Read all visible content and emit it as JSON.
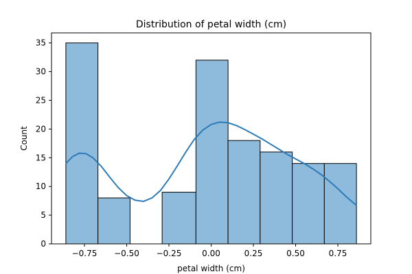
{
  "chart_data": {
    "type": "bar",
    "title": "Distribution of petal width (cm)",
    "xlabel": "petal width (cm)",
    "ylabel": "Count",
    "xlim": [
      -0.945,
      0.945
    ],
    "ylim": [
      0,
      36.75
    ],
    "xticks": [
      -0.75,
      -0.5,
      -0.25,
      0.0,
      0.25,
      0.5,
      0.75
    ],
    "xtick_labels": [
      "−0.75",
      "−0.50",
      "−0.25",
      "0.00",
      "0.25",
      "0.50",
      "0.75"
    ],
    "yticks": [
      0,
      5,
      10,
      15,
      20,
      25,
      30,
      35
    ],
    "ytick_labels": [
      "0",
      "5",
      "10",
      "15",
      "20",
      "25",
      "30",
      "35"
    ],
    "bins": [
      {
        "x0": -0.86,
        "x1": -0.67,
        "count": 35
      },
      {
        "x0": -0.67,
        "x1": -0.48,
        "count": 8
      },
      {
        "x0": -0.48,
        "x1": -0.29,
        "count": 0
      },
      {
        "x0": -0.29,
        "x1": -0.09,
        "count": 9
      },
      {
        "x0": -0.09,
        "x1": 0.1,
        "count": 32
      },
      {
        "x0": 0.1,
        "x1": 0.29,
        "count": 18
      },
      {
        "x0": 0.29,
        "x1": 0.48,
        "count": 16
      },
      {
        "x0": 0.48,
        "x1": 0.67,
        "count": 14
      },
      {
        "x0": 0.67,
        "x1": 0.86,
        "count": 14
      }
    ],
    "kde": {
      "x": [
        -0.86,
        -0.82,
        -0.78,
        -0.74,
        -0.7,
        -0.65,
        -0.6,
        -0.55,
        -0.5,
        -0.45,
        -0.4,
        -0.35,
        -0.3,
        -0.25,
        -0.2,
        -0.15,
        -0.1,
        -0.05,
        0.0,
        0.05,
        0.1,
        0.15,
        0.2,
        0.25,
        0.3,
        0.35,
        0.4,
        0.45,
        0.5,
        0.55,
        0.6,
        0.65,
        0.7,
        0.75,
        0.8,
        0.86
      ],
      "y": [
        14.0,
        15.2,
        15.8,
        15.7,
        15.0,
        13.5,
        11.6,
        9.8,
        8.4,
        7.6,
        7.4,
        8.0,
        9.3,
        11.3,
        13.6,
        16.0,
        18.2,
        19.8,
        20.8,
        21.2,
        21.1,
        20.6,
        19.9,
        19.1,
        18.3,
        17.4,
        16.5,
        15.6,
        14.8,
        14.0,
        13.1,
        12.1,
        10.9,
        9.6,
        8.2,
        6.7
      ]
    },
    "colors": {
      "bar_fill": "#8ebadb",
      "bar_edge": "#000000",
      "line": "#2b7bb9"
    },
    "grid": false,
    "legend": "none"
  }
}
